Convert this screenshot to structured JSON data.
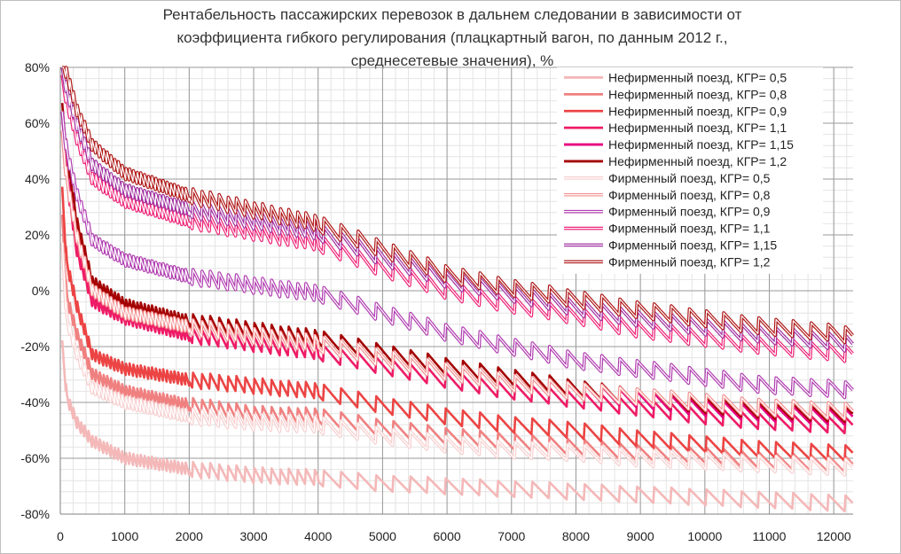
{
  "chart_data": {
    "type": "line",
    "title_lines": [
      "Рентабельность пассажирских перевозок в дальнем следовании в зависимости от",
      "коэффициента гибкого регулирования (плацкартный вагон, по данным 2012 г.,",
      "среднесетевые значения), %"
    ],
    "xlim": [
      0,
      12300
    ],
    "ylim": [
      -80,
      80
    ],
    "x_ticks": [
      0,
      1000,
      2000,
      3000,
      4000,
      5000,
      6000,
      7000,
      8000,
      9000,
      10000,
      11000,
      12000
    ],
    "y_ticks": [
      -80,
      -60,
      -40,
      -20,
      0,
      20,
      40,
      60,
      80
    ],
    "y_tick_labels": [
      "-80%",
      "-60%",
      "-40%",
      "-20%",
      "0%",
      "20%",
      "40%",
      "60%",
      "80%"
    ],
    "grid": true,
    "legend_position": "top-right",
    "series": [
      {
        "name": "Нефирменный поезд, КГР= 0,5",
        "color": "#f4b8b8",
        "style": "solid",
        "points": [
          [
            30,
            -20
          ],
          [
            100,
            -38
          ],
          [
            250,
            -47
          ],
          [
            500,
            -54
          ],
          [
            1000,
            -60
          ],
          [
            2000,
            -64
          ],
          [
            3000,
            -66
          ],
          [
            4000,
            -67
          ],
          [
            5000,
            -69
          ],
          [
            6000,
            -70
          ],
          [
            7000,
            -71
          ],
          [
            8000,
            -72
          ],
          [
            9000,
            -73
          ],
          [
            10000,
            -74
          ],
          [
            11000,
            -75
          ],
          [
            12000,
            -76
          ],
          [
            12300,
            -76.5
          ]
        ]
      },
      {
        "name": "Нефирменный поезд, КГР= 0,8",
        "color": "#f08080",
        "style": "solid",
        "points": [
          [
            30,
            25
          ],
          [
            100,
            -2
          ],
          [
            250,
            -15
          ],
          [
            500,
            -30
          ],
          [
            1000,
            -36
          ],
          [
            2000,
            -41
          ],
          [
            3000,
            -44
          ],
          [
            4000,
            -45
          ],
          [
            5000,
            -49
          ],
          [
            6000,
            -52
          ],
          [
            7000,
            -54
          ],
          [
            8000,
            -56
          ],
          [
            9000,
            -58
          ],
          [
            10000,
            -59
          ],
          [
            11000,
            -61
          ],
          [
            12000,
            -62
          ],
          [
            12300,
            -62.5
          ]
        ]
      },
      {
        "name": "Нефирменный поезд, КГР= 0,9",
        "color": "#ec4444",
        "style": "solid",
        "points": [
          [
            30,
            35
          ],
          [
            100,
            10
          ],
          [
            250,
            -5
          ],
          [
            500,
            -23
          ],
          [
            1000,
            -28
          ],
          [
            2000,
            -32
          ],
          [
            3000,
            -34
          ],
          [
            4000,
            -36
          ],
          [
            5000,
            -41
          ],
          [
            6000,
            -45
          ],
          [
            7000,
            -48
          ],
          [
            8000,
            -50
          ],
          [
            9000,
            -53
          ],
          [
            10000,
            -55
          ],
          [
            11000,
            -57
          ],
          [
            12000,
            -58
          ],
          [
            12300,
            -58.5
          ]
        ]
      },
      {
        "name": "Нефирменный поезд, КГР= 1,1",
        "color": "#ee1c66",
        "style": "solid",
        "points": [
          [
            30,
            55
          ],
          [
            100,
            40
          ],
          [
            250,
            15
          ],
          [
            500,
            -4
          ],
          [
            1000,
            -10
          ],
          [
            2000,
            -16
          ],
          [
            3000,
            -19
          ],
          [
            4000,
            -22
          ],
          [
            5000,
            -27
          ],
          [
            6000,
            -32
          ],
          [
            7000,
            -36
          ],
          [
            8000,
            -39
          ],
          [
            9000,
            -42
          ],
          [
            10000,
            -45
          ],
          [
            11000,
            -47
          ],
          [
            12000,
            -48
          ],
          [
            12300,
            -48.5
          ]
        ]
      },
      {
        "name": "Нефирменный поезд, КГР= 1,15",
        "color": "#e60080",
        "style": "solid",
        "points": [
          [
            30,
            60
          ],
          [
            100,
            45
          ],
          [
            250,
            20
          ],
          [
            500,
            0
          ],
          [
            1000,
            -7
          ],
          [
            2000,
            -13
          ],
          [
            3000,
            -16
          ],
          [
            4000,
            -19
          ],
          [
            5000,
            -24
          ],
          [
            6000,
            -29
          ],
          [
            7000,
            -33
          ],
          [
            8000,
            -36
          ],
          [
            9000,
            -39
          ],
          [
            10000,
            -42
          ],
          [
            11000,
            -44
          ],
          [
            12000,
            -45
          ],
          [
            12300,
            -45.5
          ]
        ]
      },
      {
        "name": "Нефирменный поезд, КГР= 1,2",
        "color": "#a50000",
        "style": "solid",
        "points": [
          [
            30,
            65
          ],
          [
            100,
            50
          ],
          [
            250,
            25
          ],
          [
            500,
            3
          ],
          [
            1000,
            -5
          ],
          [
            2000,
            -11
          ],
          [
            3000,
            -14
          ],
          [
            4000,
            -17
          ],
          [
            5000,
            -22
          ],
          [
            6000,
            -27
          ],
          [
            7000,
            -31
          ],
          [
            8000,
            -35
          ],
          [
            9000,
            -38
          ],
          [
            10000,
            -41
          ],
          [
            11000,
            -43
          ],
          [
            12000,
            -44
          ],
          [
            12300,
            -44.5
          ]
        ]
      },
      {
        "name": "Фирменный поезд, КГР= 0,5",
        "color": "#f8cfcf",
        "style": "double",
        "points": [
          [
            30,
            15
          ],
          [
            100,
            -10
          ],
          [
            250,
            -22
          ],
          [
            500,
            -35
          ],
          [
            1000,
            -40
          ],
          [
            2000,
            -45
          ],
          [
            3000,
            -47
          ],
          [
            4000,
            -48
          ],
          [
            5000,
            -52
          ],
          [
            6000,
            -55
          ],
          [
            7000,
            -57
          ],
          [
            8000,
            -58
          ],
          [
            9000,
            -60
          ],
          [
            10000,
            -61
          ],
          [
            11000,
            -62
          ],
          [
            12000,
            -63
          ],
          [
            12300,
            -63.5
          ]
        ]
      },
      {
        "name": "Фирменный поезд, КГР= 0,8",
        "color": "#f39090",
        "style": "double",
        "points": [
          [
            30,
            55
          ],
          [
            100,
            40
          ],
          [
            250,
            20
          ],
          [
            500,
            0
          ],
          [
            1000,
            -8
          ],
          [
            2000,
            -13
          ],
          [
            3000,
            -16
          ],
          [
            4000,
            -19
          ],
          [
            5000,
            -24
          ],
          [
            6000,
            -29
          ],
          [
            7000,
            -33
          ],
          [
            8000,
            -36
          ],
          [
            9000,
            -38
          ],
          [
            10000,
            -40
          ],
          [
            11000,
            -42
          ],
          [
            12000,
            -43
          ],
          [
            12300,
            -43.5
          ]
        ]
      },
      {
        "name": "Фирменный поезд, КГР= 0,9",
        "color": "#b03cb0",
        "style": "double",
        "points": [
          [
            30,
            62
          ],
          [
            100,
            50
          ],
          [
            250,
            35
          ],
          [
            500,
            18
          ],
          [
            1000,
            11
          ],
          [
            2000,
            5
          ],
          [
            3000,
            2
          ],
          [
            4000,
            -1
          ],
          [
            5000,
            -8
          ],
          [
            6000,
            -15
          ],
          [
            7000,
            -20
          ],
          [
            8000,
            -25
          ],
          [
            9000,
            -28
          ],
          [
            10000,
            -31
          ],
          [
            11000,
            -34
          ],
          [
            12000,
            -35
          ],
          [
            12300,
            -36
          ]
        ]
      },
      {
        "name": "Фирменный поезд, КГР= 1,1",
        "color": "#ee2277",
        "style": "double",
        "points": [
          [
            30,
            75
          ],
          [
            100,
            68
          ],
          [
            250,
            55
          ],
          [
            500,
            40
          ],
          [
            1000,
            32
          ],
          [
            2000,
            25
          ],
          [
            3000,
            21
          ],
          [
            4000,
            17
          ],
          [
            5000,
            8
          ],
          [
            6000,
            0
          ],
          [
            7000,
            -5
          ],
          [
            8000,
            -9
          ],
          [
            9000,
            -14
          ],
          [
            10000,
            -17
          ],
          [
            11000,
            -20
          ],
          [
            12000,
            -22
          ],
          [
            12300,
            -23
          ]
        ]
      },
      {
        "name": "Фирменный поезд, КГР= 1,15",
        "color": "#a030a0",
        "style": "double",
        "points": [
          [
            30,
            78
          ],
          [
            100,
            72
          ],
          [
            250,
            60
          ],
          [
            500,
            45
          ],
          [
            1000,
            36
          ],
          [
            2000,
            29
          ],
          [
            3000,
            25
          ],
          [
            4000,
            21
          ],
          [
            5000,
            12
          ],
          [
            6000,
            4
          ],
          [
            7000,
            -1
          ],
          [
            8000,
            -6
          ],
          [
            9000,
            -10
          ],
          [
            10000,
            -13
          ],
          [
            11000,
            -16
          ],
          [
            12000,
            -18
          ],
          [
            12300,
            -19.5
          ]
        ]
      },
      {
        "name": "Фирменный поезд, КГР= 1,2",
        "color": "#b01818",
        "style": "double",
        "points": [
          [
            30,
            80
          ],
          [
            100,
            78
          ],
          [
            250,
            65
          ],
          [
            500,
            52
          ],
          [
            1000,
            42
          ],
          [
            2000,
            34
          ],
          [
            3000,
            29
          ],
          [
            4000,
            24
          ],
          [
            5000,
            15
          ],
          [
            6000,
            6
          ],
          [
            7000,
            1
          ],
          [
            8000,
            -3
          ],
          [
            9000,
            -7
          ],
          [
            10000,
            -10
          ],
          [
            11000,
            -13
          ],
          [
            12000,
            -15
          ],
          [
            12300,
            -16.5
          ]
        ]
      }
    ]
  }
}
